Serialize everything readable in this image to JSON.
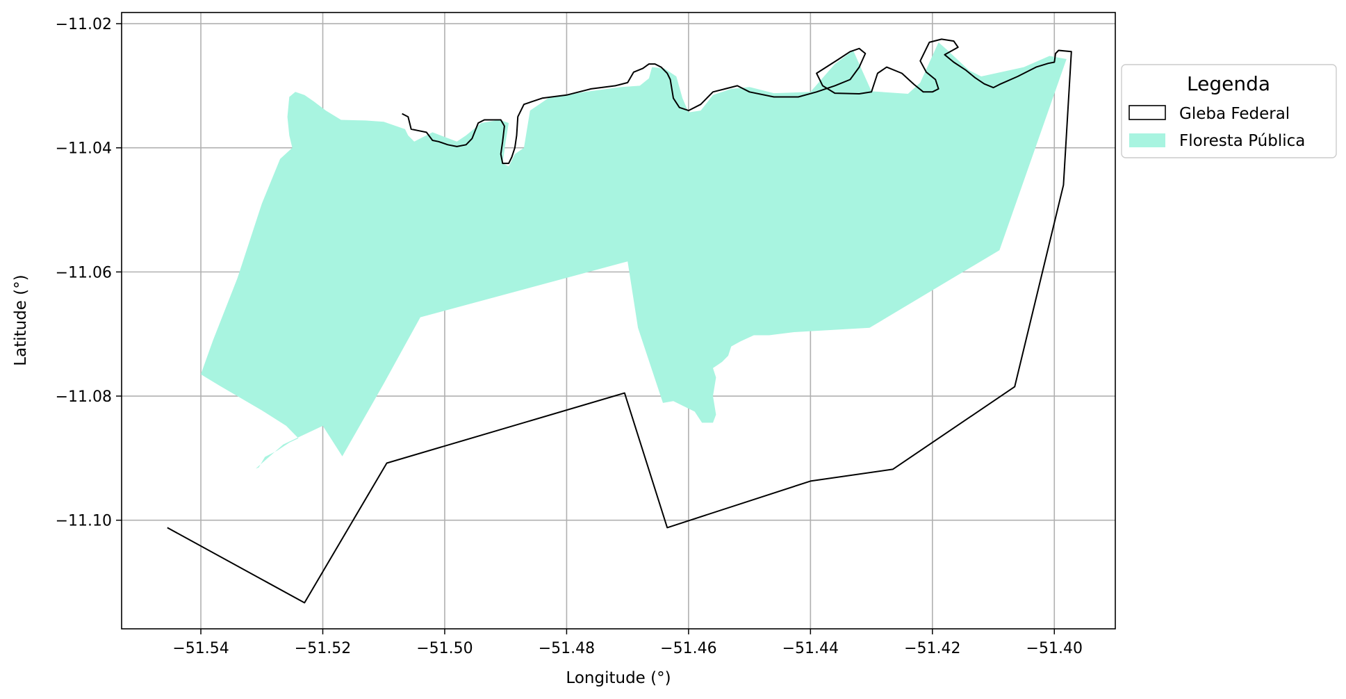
{
  "chart_data": {
    "type": "map",
    "xlabel": "Longitude (°)",
    "ylabel": "Latitude (°)",
    "xlim": [
      -51.553,
      -51.39
    ],
    "ylim": [
      -11.1175,
      -11.0182
    ],
    "x_ticks": [
      -51.54,
      -51.52,
      -51.5,
      -51.48,
      -51.46,
      -51.44,
      -51.42,
      -51.4
    ],
    "x_tick_labels": [
      "−51.54",
      "−51.52",
      "−51.50",
      "−51.48",
      "−51.46",
      "−51.44",
      "−51.42",
      "−51.40"
    ],
    "y_ticks": [
      -11.02,
      -11.04,
      -11.06,
      -11.08,
      -11.1
    ],
    "y_tick_labels": [
      "−11.02",
      "−11.04",
      "−11.06",
      "−11.08",
      "−11.10"
    ],
    "grid": true,
    "legend": {
      "title": "Legenda",
      "placement": "outside-right-top",
      "entries": [
        {
          "label": "Gleba Federal",
          "style": "outline",
          "color": "#000000"
        },
        {
          "label": "Floresta Pública",
          "style": "fill",
          "color": "#a8f4e0"
        }
      ]
    },
    "series": [
      {
        "name": "Floresta Pública",
        "kind": "polygon",
        "fill": "#a8f4e0",
        "coords": [
          [
            -51.54,
            -11.0765
          ],
          [
            -51.537,
            -11.0783
          ],
          [
            -51.53,
            -11.0823
          ],
          [
            -51.526,
            -11.0848
          ],
          [
            -51.524,
            -11.0868
          ],
          [
            -51.5255,
            -11.0875
          ],
          [
            -51.5275,
            -11.0888
          ],
          [
            -51.5295,
            -11.0898
          ],
          [
            -51.5305,
            -11.0915
          ],
          [
            -51.531,
            -11.0917
          ],
          [
            -51.5265,
            -11.0878
          ],
          [
            -51.52,
            -11.0848
          ],
          [
            -51.5168,
            -11.0897
          ],
          [
            -51.51,
            -11.078
          ],
          [
            -51.504,
            -11.0673
          ],
          [
            -51.47,
            -11.0583
          ],
          [
            -51.4683,
            -11.069
          ],
          [
            -51.4642,
            -11.0811
          ],
          [
            -51.4625,
            -11.0808
          ],
          [
            -51.459,
            -11.0825
          ],
          [
            -51.4578,
            -11.0843
          ],
          [
            -51.456,
            -11.0843
          ],
          [
            -51.4555,
            -11.083
          ],
          [
            -51.456,
            -11.08
          ],
          [
            -51.4555,
            -11.077
          ],
          [
            -51.456,
            -11.0755
          ],
          [
            -51.4545,
            -11.0745
          ],
          [
            -51.4535,
            -11.0735
          ],
          [
            -51.453,
            -11.072
          ],
          [
            -51.4515,
            -11.0712
          ],
          [
            -51.4493,
            -11.0702
          ],
          [
            -51.4468,
            -11.0702
          ],
          [
            -51.4427,
            -11.0697
          ],
          [
            -51.4303,
            -11.069
          ],
          [
            -51.409,
            -11.0565
          ],
          [
            -51.398,
            -11.0257
          ],
          [
            -51.4008,
            -11.0252
          ],
          [
            -51.405,
            -11.027
          ],
          [
            -51.412,
            -11.0285
          ],
          [
            -51.414,
            -11.0275
          ],
          [
            -51.4175,
            -11.0243
          ],
          [
            -51.419,
            -11.023
          ],
          [
            -51.422,
            -11.0295
          ],
          [
            -51.424,
            -11.0313
          ],
          [
            -51.43,
            -11.0309
          ],
          [
            -51.433,
            -11.0243
          ],
          [
            -51.436,
            -11.0265
          ],
          [
            -51.44,
            -11.031
          ],
          [
            -51.446,
            -11.0312
          ],
          [
            -51.45,
            -11.0302
          ],
          [
            -51.453,
            -11.0305
          ],
          [
            -51.456,
            -11.0315
          ],
          [
            -51.458,
            -11.034
          ],
          [
            -51.46,
            -11.0343
          ],
          [
            -51.461,
            -11.032
          ],
          [
            -51.462,
            -11.0285
          ],
          [
            -51.464,
            -11.0272
          ],
          [
            -51.466,
            -11.027
          ],
          [
            -51.4665,
            -11.0288
          ],
          [
            -51.468,
            -11.03
          ],
          [
            -51.471,
            -11.0302
          ],
          [
            -51.477,
            -11.031
          ],
          [
            -51.483,
            -11.032
          ],
          [
            -51.486,
            -11.034
          ],
          [
            -51.487,
            -11.04
          ],
          [
            -51.4885,
            -11.041
          ],
          [
            -51.4895,
            -11.043
          ],
          [
            -51.4905,
            -11.0425
          ],
          [
            -51.49,
            -11.039
          ],
          [
            -51.4895,
            -11.036
          ],
          [
            -51.491,
            -11.0355
          ],
          [
            -51.494,
            -11.036
          ],
          [
            -51.4965,
            -11.038
          ],
          [
            -51.498,
            -11.039
          ],
          [
            -51.502,
            -11.0375
          ],
          [
            -51.504,
            -11.0385
          ],
          [
            -51.505,
            -11.039
          ],
          [
            -51.506,
            -11.038
          ],
          [
            -51.5065,
            -11.037
          ],
          [
            -51.51,
            -11.0358
          ],
          [
            -51.513,
            -11.0356
          ],
          [
            -51.517,
            -11.0355
          ],
          [
            -51.5195,
            -11.034
          ],
          [
            -51.5215,
            -11.0325
          ],
          [
            -51.523,
            -11.0315
          ],
          [
            -51.5245,
            -11.031
          ],
          [
            -51.5255,
            -11.0318
          ],
          [
            -51.5258,
            -11.035
          ],
          [
            -51.5255,
            -11.038
          ],
          [
            -51.525,
            -11.04
          ],
          [
            -51.527,
            -11.0418
          ],
          [
            -51.53,
            -11.049
          ],
          [
            -51.534,
            -11.061
          ],
          [
            -51.538,
            -11.071
          ]
        ]
      },
      {
        "name": "Gleba Federal",
        "kind": "outline",
        "stroke": "#000000",
        "coords": [
          [
            -51.5455,
            -11.1012
          ],
          [
            -51.523,
            -11.1133
          ],
          [
            -51.5095,
            -11.0908
          ],
          [
            -51.4705,
            -11.0795
          ],
          [
            -51.4635,
            -11.1012
          ],
          [
            -51.44,
            -11.0937
          ],
          [
            -51.4265,
            -11.0918
          ],
          [
            -51.4065,
            -11.0785
          ],
          [
            -51.3985,
            -11.046
          ],
          [
            -51.3972,
            -11.0245
          ],
          [
            -51.3993,
            -11.0243
          ],
          [
            -51.3998,
            -11.0248
          ],
          [
            -51.4,
            -11.0262
          ],
          [
            -51.401,
            -11.0264
          ],
          [
            -51.403,
            -11.027
          ],
          [
            -51.406,
            -11.0285
          ],
          [
            -51.409,
            -11.0298
          ],
          [
            -51.41,
            -11.0303
          ],
          [
            -51.4115,
            -11.0297
          ],
          [
            -51.413,
            -11.0287
          ],
          [
            -51.4145,
            -11.0275
          ],
          [
            -51.4165,
            -11.0262
          ],
          [
            -51.418,
            -11.025
          ],
          [
            -51.4158,
            -11.0238
          ],
          [
            -51.4165,
            -11.0228
          ],
          [
            -51.4185,
            -11.0225
          ],
          [
            -51.4205,
            -11.023
          ],
          [
            -51.422,
            -11.026
          ],
          [
            -51.421,
            -11.0278
          ],
          [
            -51.4195,
            -11.029
          ],
          [
            -51.419,
            -11.0305
          ],
          [
            -51.42,
            -11.031
          ],
          [
            -51.4215,
            -11.031
          ],
          [
            -51.423,
            -11.0298
          ],
          [
            -51.425,
            -11.028
          ],
          [
            -51.4275,
            -11.027
          ],
          [
            -51.429,
            -11.028
          ],
          [
            -51.43,
            -11.031
          ],
          [
            -51.432,
            -11.0313
          ],
          [
            -51.436,
            -11.0312
          ],
          [
            -51.438,
            -11.03
          ],
          [
            -51.439,
            -11.028
          ],
          [
            -51.4355,
            -11.0258
          ],
          [
            -51.4335,
            -11.0245
          ],
          [
            -51.432,
            -11.024
          ],
          [
            -51.431,
            -11.0248
          ],
          [
            -51.432,
            -11.027
          ],
          [
            -51.4335,
            -11.029
          ],
          [
            -51.436,
            -11.03
          ],
          [
            -51.439,
            -11.031
          ],
          [
            -51.442,
            -11.0318
          ],
          [
            -51.446,
            -11.0318
          ],
          [
            -51.45,
            -11.031
          ],
          [
            -51.452,
            -11.03
          ],
          [
            -51.454,
            -11.0305
          ],
          [
            -51.456,
            -11.031
          ],
          [
            -51.458,
            -11.033
          ],
          [
            -51.46,
            -11.034
          ],
          [
            -51.4615,
            -11.0335
          ],
          [
            -51.4625,
            -11.032
          ],
          [
            -51.463,
            -11.029
          ],
          [
            -51.4635,
            -11.028
          ],
          [
            -51.4645,
            -11.027
          ],
          [
            -51.4655,
            -11.0265
          ],
          [
            -51.4665,
            -11.0265
          ],
          [
            -51.4675,
            -11.0272
          ],
          [
            -51.469,
            -11.0278
          ],
          [
            -51.47,
            -11.0295
          ],
          [
            -51.472,
            -11.03
          ],
          [
            -51.476,
            -11.0305
          ],
          [
            -51.48,
            -11.0315
          ],
          [
            -51.484,
            -11.032
          ],
          [
            -51.487,
            -11.033
          ],
          [
            -51.488,
            -11.035
          ],
          [
            -51.4882,
            -11.038
          ],
          [
            -51.4885,
            -11.04
          ],
          [
            -51.489,
            -11.0415
          ],
          [
            -51.4895,
            -11.0425
          ],
          [
            -51.4905,
            -11.0425
          ],
          [
            -51.4908,
            -11.041
          ],
          [
            -51.4905,
            -11.039
          ],
          [
            -51.4902,
            -11.0365
          ],
          [
            -51.4908,
            -11.0355
          ],
          [
            -51.4925,
            -11.0355
          ],
          [
            -51.4935,
            -11.0355
          ],
          [
            -51.4945,
            -11.036
          ],
          [
            -51.4955,
            -11.0385
          ],
          [
            -51.4965,
            -11.0395
          ],
          [
            -51.498,
            -11.0398
          ],
          [
            -51.4995,
            -11.0395
          ],
          [
            -51.501,
            -11.039
          ],
          [
            -51.502,
            -11.0388
          ],
          [
            -51.503,
            -11.0375
          ],
          [
            -51.5045,
            -11.0372
          ],
          [
            -51.5055,
            -11.037
          ],
          [
            -51.506,
            -11.035
          ],
          [
            -51.507,
            -11.0345
          ]
        ]
      }
    ]
  }
}
